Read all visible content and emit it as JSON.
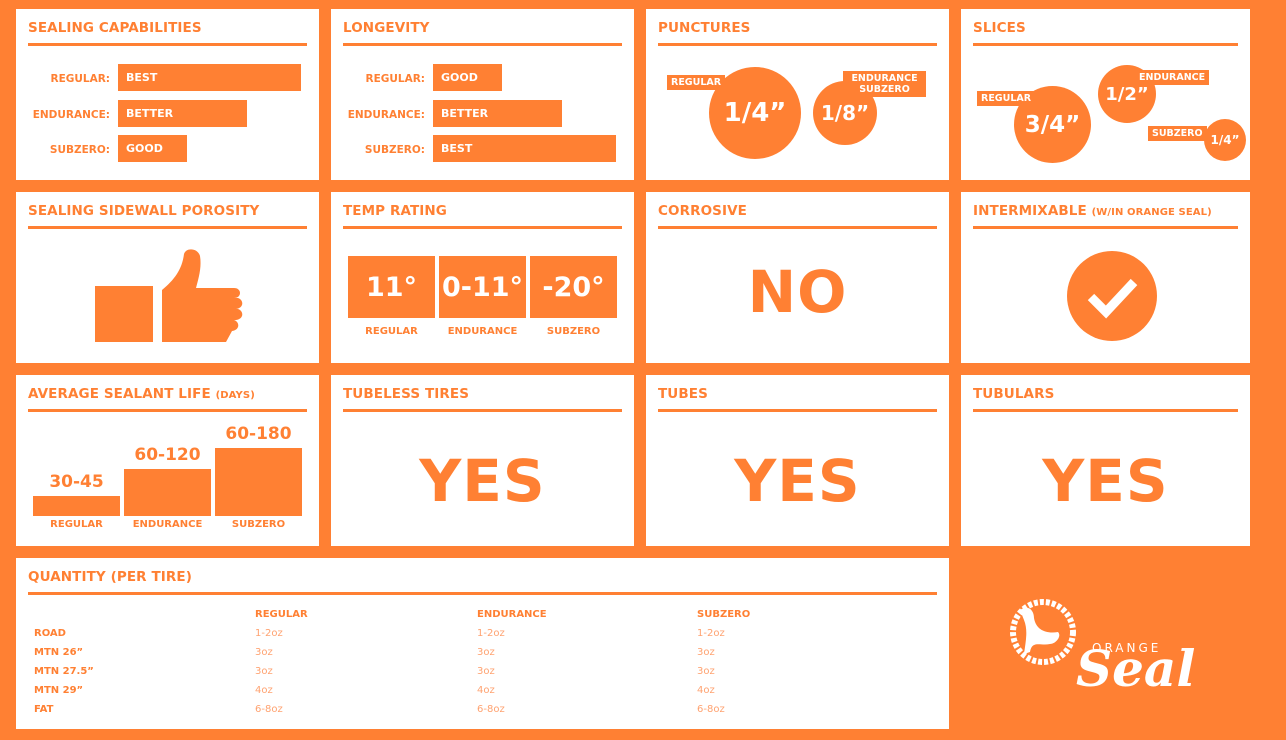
{
  "colors": {
    "brand": "#ff8033",
    "panel": "#ffffff"
  },
  "sealing": {
    "title": "SEALING CAPABILITIES",
    "rows": [
      {
        "label": "REGULAR:",
        "value": "BEST",
        "level": 3
      },
      {
        "label": "ENDURANCE:",
        "value": "BETTER",
        "level": 2
      },
      {
        "label": "SUBZERO:",
        "value": "GOOD",
        "level": 1
      }
    ]
  },
  "longevity": {
    "title": "LONGEVITY",
    "rows": [
      {
        "label": "REGULAR:",
        "value": "GOOD",
        "level": 1
      },
      {
        "label": "ENDURANCE:",
        "value": "BETTER",
        "level": 2
      },
      {
        "label": "SUBZERO:",
        "value": "BEST",
        "level": 3
      }
    ]
  },
  "punctures": {
    "title": "PUNCTURES",
    "items": [
      {
        "label": "REGULAR",
        "value": "1/4”"
      },
      {
        "label": "ENDURANCE SUBZERO",
        "value": "1/8”"
      }
    ]
  },
  "slices": {
    "title": "SLICES",
    "items": [
      {
        "label": "REGULAR",
        "value": "3/4”"
      },
      {
        "label": "ENDURANCE",
        "value": "1/2”"
      },
      {
        "label": "SUBZERO",
        "value": "1/4”"
      }
    ]
  },
  "porosity": {
    "title": "SEALING SIDEWALL POROSITY",
    "icon": "thumbs-up-icon"
  },
  "temp": {
    "title": "TEMP RATING",
    "items": [
      {
        "value": "11°",
        "label": "REGULAR"
      },
      {
        "value": "0-11°",
        "label": "ENDURANCE"
      },
      {
        "value": "-20°",
        "label": "SUBZERO"
      }
    ]
  },
  "corrosive": {
    "title": "CORROSIVE",
    "value": "NO"
  },
  "intermixable": {
    "title": "INTERMIXABLE",
    "title_note": "(W/IN ORANGE SEAL)",
    "icon": "checkmark-icon"
  },
  "life": {
    "title": "AVERAGE SEALANT LIFE",
    "title_note": "(DAYS)",
    "items": [
      {
        "label": "REGULAR",
        "value": "30-45",
        "max_days": 45
      },
      {
        "label": "ENDURANCE",
        "value": "60-120",
        "max_days": 120
      },
      {
        "label": "SUBZERO",
        "value": "60-180",
        "max_days": 180
      }
    ]
  },
  "tubeless": {
    "title": "TUBELESS TIRES",
    "value": "YES"
  },
  "tubes": {
    "title": "TUBES",
    "value": "YES"
  },
  "tubulars": {
    "title": "TUBULARS",
    "value": "YES"
  },
  "quantity": {
    "title": "QUANTITY (PER TIRE)",
    "columns": [
      "REGULAR",
      "ENDURANCE",
      "SUBZERO"
    ],
    "rows": [
      {
        "label": "ROAD",
        "values": [
          "1-2oz",
          "1-2oz",
          "1-2oz"
        ]
      },
      {
        "label": "MTN 26”",
        "values": [
          "3oz",
          "3oz",
          "3oz"
        ]
      },
      {
        "label": "MTN 27.5”",
        "values": [
          "3oz",
          "3oz",
          "3oz"
        ]
      },
      {
        "label": "MTN 29”",
        "values": [
          "4oz",
          "4oz",
          "4oz"
        ]
      },
      {
        "label": "FAT",
        "values": [
          "6-8oz",
          "6-8oz",
          "6-8oz"
        ]
      }
    ]
  },
  "logo": {
    "top": "ORANGE",
    "main": "Seal"
  }
}
